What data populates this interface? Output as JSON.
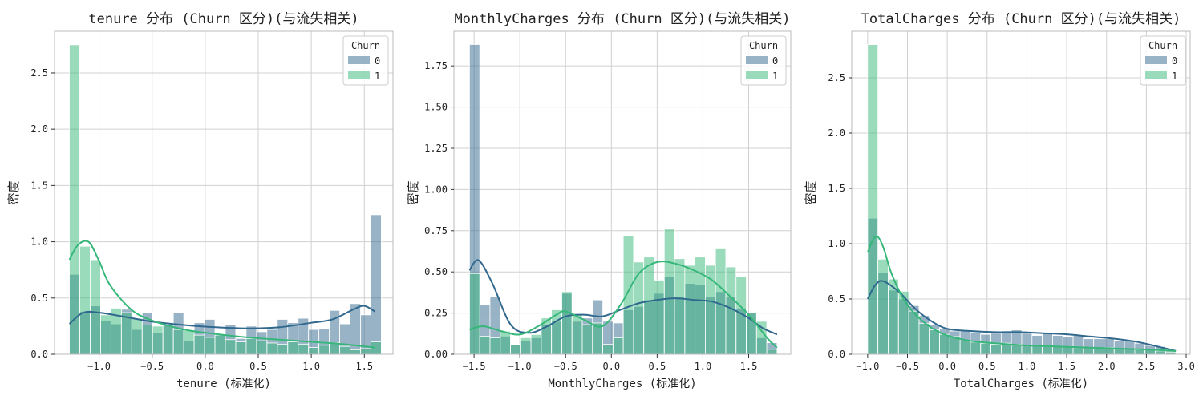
{
  "colors": {
    "churn0": "#31688e",
    "churn1": "#35b779",
    "grid": "#d0d0d0",
    "frame": "#bbbbbb"
  },
  "chart_data": [
    {
      "type": "histogram-kde",
      "title": "tenure 分布 (Churn 区分)(与流失相关)",
      "xlabel": "tenure (标准化)",
      "ylabel": "密度",
      "xlim": [
        -1.42,
        1.77
      ],
      "ylim": [
        0,
        2.87
      ],
      "xticks": [
        -1.0,
        -0.5,
        0.0,
        0.5,
        1.0,
        1.5
      ],
      "xticklabels": [
        "−1.0",
        "−0.5",
        "0.0",
        "0.5",
        "1.0",
        "1.5"
      ],
      "yticks": [
        0.0,
        0.5,
        1.0,
        1.5,
        2.0,
        2.5
      ],
      "yticklabels": [
        "0.0",
        "0.5",
        "1.0",
        "1.5",
        "2.0",
        "2.5"
      ],
      "grid": true,
      "legend": {
        "title": "Churn",
        "position": "top-right",
        "entries": [
          "0",
          "1"
        ]
      },
      "bin_edges": [
        -1.28,
        -1.182,
        -1.084,
        -0.986,
        -0.888,
        -0.79,
        -0.692,
        -0.594,
        -0.496,
        -0.398,
        -0.3,
        -0.202,
        -0.104,
        -0.006,
        0.092,
        0.19,
        0.288,
        0.386,
        0.484,
        0.582,
        0.68,
        0.778,
        0.876,
        0.974,
        1.072,
        1.17,
        1.268,
        1.366,
        1.464,
        1.562,
        1.66
      ],
      "series": [
        {
          "name": "0",
          "values": [
            0.71,
            0.38,
            0.43,
            0.3,
            0.27,
            0.4,
            0.22,
            0.37,
            0.19,
            0.26,
            0.37,
            0.12,
            0.28,
            0.31,
            0.18,
            0.26,
            0.14,
            0.25,
            0.2,
            0.22,
            0.31,
            0.28,
            0.32,
            0.22,
            0.23,
            0.39,
            0.27,
            0.45,
            0.35,
            1.24
          ],
          "kde_x": [
            -1.28,
            -1.15,
            -1.0,
            -0.8,
            -0.5,
            -0.2,
            0.1,
            0.4,
            0.7,
            1.0,
            1.2,
            1.4,
            1.5,
            1.6
          ],
          "kde_y": [
            0.27,
            0.37,
            0.37,
            0.34,
            0.29,
            0.26,
            0.24,
            0.23,
            0.24,
            0.28,
            0.31,
            0.4,
            0.43,
            0.38
          ]
        },
        {
          "name": "1",
          "values": [
            2.75,
            0.96,
            0.84,
            0.35,
            0.41,
            0.37,
            0.32,
            0.26,
            0.25,
            0.26,
            0.22,
            0.21,
            0.17,
            0.15,
            0.17,
            0.13,
            0.11,
            0.14,
            0.12,
            0.1,
            0.09,
            0.11,
            0.09,
            0.06,
            0.08,
            0.1,
            0.07,
            0.04,
            0.05,
            0.11
          ],
          "kde_x": [
            -1.28,
            -1.2,
            -1.1,
            -1.0,
            -0.9,
            -0.7,
            -0.5,
            -0.2,
            0.1,
            0.4,
            0.7,
            1.0,
            1.3,
            1.6
          ],
          "kde_y": [
            0.84,
            0.97,
            1.0,
            0.83,
            0.62,
            0.4,
            0.3,
            0.22,
            0.18,
            0.15,
            0.13,
            0.11,
            0.09,
            0.06
          ]
        }
      ]
    },
    {
      "type": "histogram-kde",
      "title": "MonthlyCharges 分布 (Churn 区分)(与流失相关)",
      "xlabel": "MonthlyCharges (标准化)",
      "ylabel": "密度",
      "xlim": [
        -1.72,
        1.96
      ],
      "ylim": [
        0,
        1.96
      ],
      "xticks": [
        -1.5,
        -1.0,
        -0.5,
        0.0,
        0.5,
        1.0,
        1.5
      ],
      "xticklabels": [
        "−1.5",
        "−1.0",
        "−0.5",
        "0.0",
        "0.5",
        "1.0",
        "1.5"
      ],
      "yticks": [
        0.0,
        0.25,
        0.5,
        0.75,
        1.0,
        1.25,
        1.5,
        1.75
      ],
      "yticklabels": [
        "0.00",
        "0.25",
        "0.50",
        "0.75",
        "1.00",
        "1.25",
        "1.50",
        "1.75"
      ],
      "grid": true,
      "legend": {
        "title": "Churn",
        "position": "top-right",
        "entries": [
          "0",
          "1"
        ]
      },
      "bin_edges": [
        -1.55,
        -1.438,
        -1.326,
        -1.214,
        -1.102,
        -0.99,
        -0.878,
        -0.766,
        -0.654,
        -0.542,
        -0.43,
        -0.318,
        -0.206,
        -0.094,
        0.018,
        0.13,
        0.242,
        0.354,
        0.466,
        0.578,
        0.69,
        0.802,
        0.914,
        1.026,
        1.138,
        1.25,
        1.362,
        1.474,
        1.586,
        1.698,
        1.81
      ],
      "series": [
        {
          "name": "0",
          "values": [
            1.88,
            0.3,
            0.35,
            0.11,
            0.06,
            0.08,
            0.1,
            0.18,
            0.2,
            0.37,
            0.2,
            0.22,
            0.33,
            0.2,
            0.19,
            0.27,
            0.29,
            0.33,
            0.37,
            0.47,
            0.35,
            0.43,
            0.42,
            0.35,
            0.38,
            0.35,
            0.28,
            0.25,
            0.1,
            0.07
          ],
          "kde_x": [
            -1.55,
            -1.45,
            -1.3,
            -1.1,
            -0.9,
            -0.7,
            -0.5,
            -0.3,
            -0.1,
            0.1,
            0.3,
            0.5,
            0.7,
            0.9,
            1.1,
            1.3,
            1.5,
            1.65,
            1.81
          ],
          "kde_y": [
            0.51,
            0.57,
            0.43,
            0.18,
            0.13,
            0.17,
            0.23,
            0.24,
            0.23,
            0.27,
            0.31,
            0.33,
            0.34,
            0.33,
            0.32,
            0.28,
            0.22,
            0.16,
            0.12
          ]
        },
        {
          "name": "1",
          "values": [
            0.49,
            0.11,
            0.1,
            0.14,
            0.06,
            0.1,
            0.12,
            0.22,
            0.27,
            0.38,
            0.24,
            0.18,
            0.19,
            0.06,
            0.1,
            0.72,
            0.56,
            0.59,
            0.45,
            0.76,
            0.58,
            0.54,
            0.59,
            0.54,
            0.64,
            0.53,
            0.47,
            0.25,
            0.2,
            0.03
          ],
          "kde_x": [
            -1.55,
            -1.4,
            -1.2,
            -1.0,
            -0.8,
            -0.6,
            -0.5,
            -0.3,
            -0.1,
            0.1,
            0.3,
            0.5,
            0.7,
            0.9,
            1.1,
            1.3,
            1.5,
            1.7,
            1.81
          ],
          "kde_y": [
            0.15,
            0.17,
            0.14,
            0.12,
            0.17,
            0.24,
            0.26,
            0.21,
            0.17,
            0.3,
            0.49,
            0.56,
            0.55,
            0.51,
            0.45,
            0.35,
            0.24,
            0.1,
            0.04
          ]
        }
      ]
    },
    {
      "type": "histogram-kde",
      "title": "TotalCharges 分布 (Churn 区分)(与流失相关)",
      "xlabel": "TotalCharges (标准化)",
      "ylabel": "密度",
      "xlim": [
        -1.2,
        3.05
      ],
      "ylim": [
        0,
        2.92
      ],
      "xticks": [
        -1.0,
        -0.5,
        0.0,
        0.5,
        1.0,
        1.5,
        2.0,
        2.5,
        3.0
      ],
      "xticklabels": [
        "−1.0",
        "−0.5",
        "0.0",
        "0.5",
        "1.0",
        "1.5",
        "2.0",
        "2.5",
        "3.0"
      ],
      "yticks": [
        0.0,
        0.5,
        1.0,
        1.5,
        2.0,
        2.5
      ],
      "yticklabels": [
        "0.0",
        "0.5",
        "1.0",
        "1.5",
        "2.0",
        "2.5"
      ],
      "grid": true,
      "legend": {
        "title": "Churn",
        "position": "top-right",
        "entries": [
          "0",
          "1"
        ]
      },
      "bin_edges": [
        -1.0,
        -0.871,
        -0.742,
        -0.613,
        -0.484,
        -0.355,
        -0.226,
        -0.097,
        0.032,
        0.161,
        0.29,
        0.419,
        0.548,
        0.677,
        0.806,
        0.935,
        1.064,
        1.193,
        1.322,
        1.451,
        1.58,
        1.709,
        1.838,
        1.967,
        2.096,
        2.225,
        2.354,
        2.483,
        2.612,
        2.741,
        2.87
      ],
      "series": [
        {
          "name": "0",
          "values": [
            1.23,
            0.74,
            0.58,
            0.5,
            0.44,
            0.35,
            0.27,
            0.23,
            0.21,
            0.21,
            0.2,
            0.18,
            0.19,
            0.21,
            0.22,
            0.19,
            0.17,
            0.19,
            0.17,
            0.16,
            0.17,
            0.14,
            0.14,
            0.14,
            0.12,
            0.12,
            0.1,
            0.08,
            0.07,
            0.04
          ],
          "kde_x": [
            -1.0,
            -0.9,
            -0.8,
            -0.6,
            -0.4,
            -0.2,
            0.0,
            0.3,
            0.6,
            0.9,
            1.2,
            1.5,
            1.8,
            2.1,
            2.4,
            2.7,
            2.87
          ],
          "kde_y": [
            0.5,
            0.63,
            0.66,
            0.56,
            0.41,
            0.3,
            0.23,
            0.21,
            0.2,
            0.2,
            0.19,
            0.18,
            0.16,
            0.14,
            0.11,
            0.06,
            0.03
          ]
        },
        {
          "name": "1",
          "values": [
            2.8,
            0.86,
            0.68,
            0.57,
            0.39,
            0.28,
            0.22,
            0.18,
            0.16,
            0.12,
            0.11,
            0.1,
            0.09,
            0.1,
            0.09,
            0.08,
            0.08,
            0.07,
            0.07,
            0.07,
            0.06,
            0.06,
            0.05,
            0.06,
            0.05,
            0.05,
            0.04,
            0.04,
            0.03,
            0.02
          ],
          "kde_x": [
            -1.0,
            -0.93,
            -0.87,
            -0.8,
            -0.7,
            -0.55,
            -0.4,
            -0.2,
            0.0,
            0.3,
            0.6,
            1.0,
            1.4,
            1.8,
            2.2,
            2.6,
            2.87
          ],
          "kde_y": [
            0.92,
            1.04,
            1.06,
            0.96,
            0.73,
            0.5,
            0.36,
            0.24,
            0.17,
            0.12,
            0.1,
            0.08,
            0.07,
            0.06,
            0.05,
            0.04,
            0.03
          ]
        }
      ]
    }
  ]
}
